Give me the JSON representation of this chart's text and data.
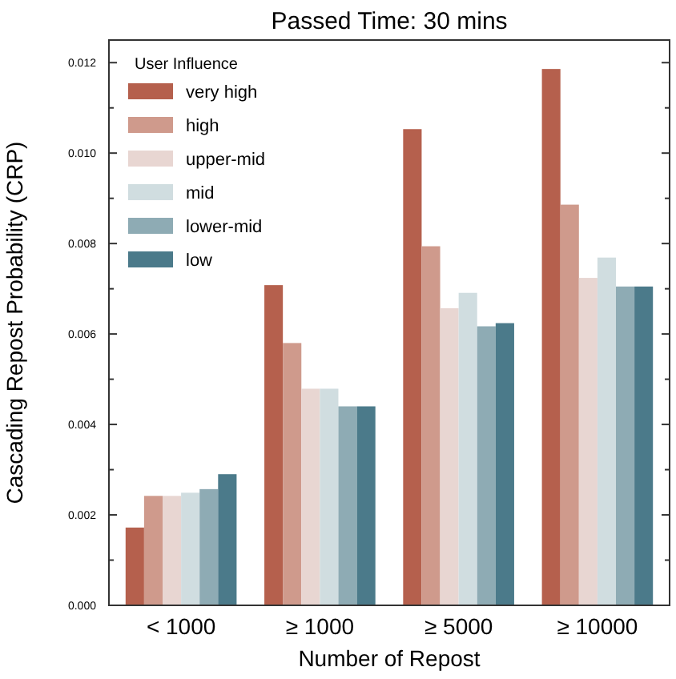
{
  "chart_data": {
    "type": "bar",
    "title": "Passed Time: 30 mins",
    "xlabel": "Number of Repost",
    "ylabel": "Cascading Repost Probability (CRP)",
    "legend_title": "User Influence",
    "legend": "top left",
    "grid": false,
    "categories": [
      "< 1000",
      "≥ 1000",
      "≥ 5000",
      "≥ 10000"
    ],
    "ylim": [
      0,
      0.0125
    ],
    "yticks": [
      {
        "value": 0,
        "label": "0.000"
      },
      {
        "value": 0.001,
        "label": null
      },
      {
        "value": 0.002,
        "label": "0.002"
      },
      {
        "value": 0.003,
        "label": null
      },
      {
        "value": 0.004,
        "label": "0.004"
      },
      {
        "value": 0.005,
        "label": null
      },
      {
        "value": 0.006,
        "label": "0.006"
      },
      {
        "value": 0.007,
        "label": null
      },
      {
        "value": 0.008,
        "label": "0.008"
      },
      {
        "value": 0.009,
        "label": null
      },
      {
        "value": 0.01,
        "label": "0.010"
      },
      {
        "value": 0.011,
        "label": null
      },
      {
        "value": 0.012,
        "label": "0.012"
      }
    ],
    "series": [
      {
        "name": "very high",
        "color": "#b5604d",
        "values": [
          0.00172,
          0.00708,
          0.01053,
          0.01186
        ]
      },
      {
        "name": "high",
        "color": "#cf9a8c",
        "values": [
          0.00242,
          0.0058,
          0.00794,
          0.00886
        ]
      },
      {
        "name": "upper-mid",
        "color": "#e8d6d2",
        "values": [
          0.00242,
          0.00479,
          0.00657,
          0.00724
        ]
      },
      {
        "name": "mid",
        "color": "#d0dde0",
        "values": [
          0.00249,
          0.00479,
          0.00691,
          0.00769
        ]
      },
      {
        "name": "lower-mid",
        "color": "#8eabb4",
        "values": [
          0.00257,
          0.0044,
          0.00617,
          0.00705
        ]
      },
      {
        "name": "low",
        "color": "#4b7a8a",
        "values": [
          0.0029,
          0.0044,
          0.00624,
          0.00705
        ]
      }
    ]
  }
}
